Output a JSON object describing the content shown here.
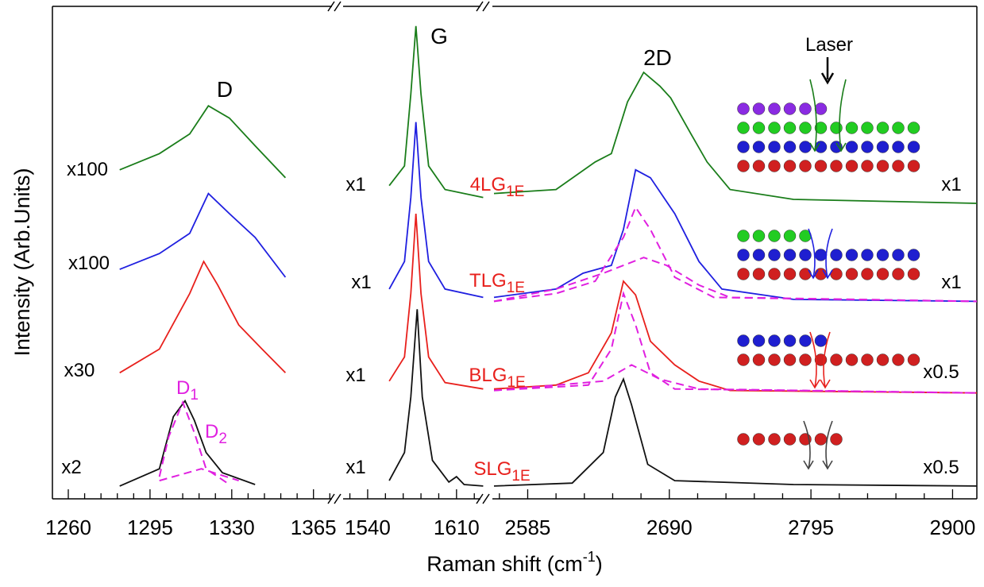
{
  "chart_data": {
    "type": "line",
    "ylabel": "Intensity (Arb.Units)",
    "xlabel": {
      "text": "Raman shift (cm",
      "sup": "-1",
      "end": ")"
    },
    "ylim": [
      0,
      100
    ],
    "panels": [
      {
        "xlim": [
          1253.2,
          1373.6
        ],
        "xticks": [
          1260,
          1295,
          1330,
          1365
        ],
        "minor_xticks": [
          1267,
          1274,
          1281,
          1288,
          1302,
          1309,
          1316,
          1323,
          1337,
          1344,
          1351,
          1358,
          1372
        ]
      },
      {
        "xlim": [
          1519.4,
          1632
        ],
        "xticks": [
          1540,
          1610
        ],
        "minor_xticks": [
          1526,
          1554,
          1568,
          1582,
          1596,
          1624
        ]
      },
      {
        "xlim": [
          2560,
          2918
        ],
        "xticks": [
          2585,
          2690,
          2795,
          2900
        ],
        "minor_xticks": [
          2564,
          2606,
          2627,
          2648,
          2669,
          2711,
          2732,
          2753,
          2774,
          2816,
          2837,
          2858,
          2879
        ]
      }
    ],
    "series": [
      {
        "color": "#1a7d1a",
        "dash": false,
        "x": [
          1253,
          1282,
          1299,
          1312,
          1320,
          1329,
          1340,
          1353,
          1374,
          null,
          1519,
          1557,
          1569,
          1574,
          1578,
          1582,
          1588,
          1601,
          1631,
          null,
          2560,
          2606,
          2635,
          2647,
          2659,
          2671,
          2683,
          2691,
          2706,
          2718,
          2735,
          2782,
          2918
        ],
        "values": [
          61.2,
          66.8,
          70.1,
          74.1,
          79.8,
          77.3,
          71.7,
          65.2,
          61.2,
          null,
          62.0,
          63.6,
          67.6,
          82.2,
          96.0,
          82.2,
          67.6,
          62.8,
          61.2,
          null,
          62.0,
          62.8,
          68.4,
          70.1,
          80.6,
          86.6,
          83.8,
          81.4,
          74.1,
          68.4,
          62.8,
          60.8,
          60.0
        ]
      },
      {
        "color": "#1f1fe0",
        "dash": false,
        "x": [
          1253,
          1282,
          1299,
          1312,
          1320,
          1329,
          1340,
          1353,
          1374,
          null,
          1519,
          1557,
          1569,
          1574,
          1578,
          1582,
          1588,
          1601,
          1631,
          null,
          2560,
          2606,
          2626,
          2647,
          2656,
          2665,
          2676,
          2694,
          2712,
          2729,
          2782,
          2918
        ],
        "values": [
          40.9,
          46.6,
          49.8,
          53.9,
          62.0,
          57.9,
          53.1,
          45.0,
          40.9,
          null,
          40.9,
          42.6,
          48.2,
          61.2,
          76.5,
          61.2,
          48.2,
          42.6,
          40.9,
          null,
          40.9,
          42.6,
          45.8,
          47.4,
          54.7,
          66.8,
          65.2,
          57.9,
          48.2,
          42.6,
          40.5,
          40.1
        ]
      },
      {
        "color": "#e8201c",
        "dash": false,
        "x": [
          1253,
          1282,
          1299,
          1312,
          1318,
          1324,
          1333,
          1343,
          1353,
          1374,
          null,
          1519,
          1557,
          1569,
          1574,
          1578,
          1582,
          1588,
          1601,
          1631,
          null,
          2560,
          2606,
          2630,
          2647,
          2656,
          2665,
          2676,
          2694,
          2712,
          2735,
          2918
        ],
        "values": [
          22.3,
          25.6,
          30.4,
          41.7,
          48.2,
          43.4,
          35.3,
          30.4,
          25.6,
          22.3,
          null,
          22.3,
          23.9,
          28.8,
          41.7,
          57.9,
          41.7,
          28.8,
          23.6,
          22.3,
          null,
          22.3,
          23.1,
          25.6,
          33.7,
          44.2,
          41.4,
          32.0,
          27.2,
          23.9,
          22.0,
          21.5
        ]
      },
      {
        "color": "#111111",
        "dash": false,
        "x": [
          1253,
          1282,
          1299,
          1305,
          1310,
          1314,
          1319,
          1326,
          1340,
          1374,
          null,
          1519,
          1557,
          1569,
          1574,
          1579,
          1583,
          1591,
          1604,
          1610,
          1616,
          1631,
          null,
          2560,
          2618,
          2641,
          2650,
          2656,
          2662,
          2674,
          2694,
          2782,
          2918
        ],
        "values": [
          2.6,
          2.6,
          6.1,
          16.7,
          19.9,
          15.9,
          9.4,
          5.3,
          2.9,
          2.6,
          null,
          2.6,
          3.7,
          9.4,
          20.7,
          38.5,
          20.7,
          7.8,
          3.4,
          4.5,
          2.9,
          2.6,
          null,
          2.6,
          3.2,
          9.4,
          20.7,
          24.3,
          19.1,
          7.0,
          3.7,
          2.9,
          2.6
        ]
      },
      {
        "color": "#e020e0",
        "dash": true,
        "x": [
          1253,
          1299,
          1303,
          1309,
          1314,
          1319,
          1329,
          1374
        ],
        "values": [
          2.6,
          4.5,
          12.6,
          19.6,
          13.4,
          6.1,
          2.9,
          2.6
        ]
      },
      {
        "color": "#e020e0",
        "dash": true,
        "x": [
          1253,
          1299,
          1317,
          1333,
          1374
        ],
        "values": [
          2.6,
          3.7,
          6.1,
          3.7,
          2.6
        ]
      },
      {
        "color": "#e020e0",
        "dash": true,
        "x": [
          2560,
          2606,
          2635,
          2656,
          2665,
          2676,
          2694,
          2723,
          2918
        ],
        "values": [
          40.1,
          41.7,
          44.2,
          53.1,
          59.2,
          54.7,
          45.0,
          40.9,
          40.1
        ]
      },
      {
        "color": "#e020e0",
        "dash": true,
        "x": [
          2560,
          2606,
          2641,
          2671,
          2688,
          2712,
          2735,
          2918
        ],
        "values": [
          40.1,
          42.6,
          45.8,
          49.0,
          47.4,
          43.4,
          40.9,
          40.1
        ]
      },
      {
        "color": "#e020e0",
        "dash": true,
        "x": [
          2560,
          2630,
          2647,
          2656,
          2665,
          2676,
          2694,
          2918
        ],
        "values": [
          22.0,
          23.1,
          30.4,
          41.7,
          35.3,
          25.6,
          22.3,
          21.5
        ]
      },
      {
        "color": "#e020e0",
        "dash": true,
        "x": [
          2560,
          2641,
          2662,
          2683,
          2712,
          2918
        ],
        "values": [
          22.0,
          23.9,
          27.2,
          24.3,
          22.3,
          21.5
        ]
      }
    ],
    "annotations": [
      {
        "text": "D",
        "color": "#000000"
      },
      {
        "text": "G",
        "color": "#000000"
      },
      {
        "text": "2D",
        "color": "#000000"
      },
      {
        "text": "Laser",
        "color": "#000000"
      },
      {
        "text": "x100",
        "color": "#000000"
      },
      {
        "text": "x100",
        "color": "#000000"
      },
      {
        "text": "x30",
        "color": "#000000"
      },
      {
        "text": "x2",
        "color": "#000000"
      },
      {
        "text": "x1",
        "color": "#000000"
      },
      {
        "text": "x1",
        "color": "#000000"
      },
      {
        "text": "x1",
        "color": "#000000"
      },
      {
        "text": "x1",
        "color": "#000000"
      },
      {
        "text": "x1",
        "color": "#000000"
      },
      {
        "text": "x1",
        "color": "#000000"
      },
      {
        "text": "x0.5",
        "color": "#000000"
      },
      {
        "text": "x0.5",
        "color": "#000000"
      },
      {
        "text": "4LG",
        "sub": "1E",
        "color": "#e8201c"
      },
      {
        "text": "TLG",
        "sub": "1E",
        "color": "#e8201c"
      },
      {
        "text": "BLG",
        "sub": "1E",
        "color": "#e8201c"
      },
      {
        "text": "SLG",
        "sub": "1E",
        "color": "#e8201c"
      },
      {
        "text": "D",
        "sub": "1",
        "color": "#e020e0"
      },
      {
        "text": "D",
        "sub": "2",
        "color": "#e020e0"
      }
    ]
  }
}
